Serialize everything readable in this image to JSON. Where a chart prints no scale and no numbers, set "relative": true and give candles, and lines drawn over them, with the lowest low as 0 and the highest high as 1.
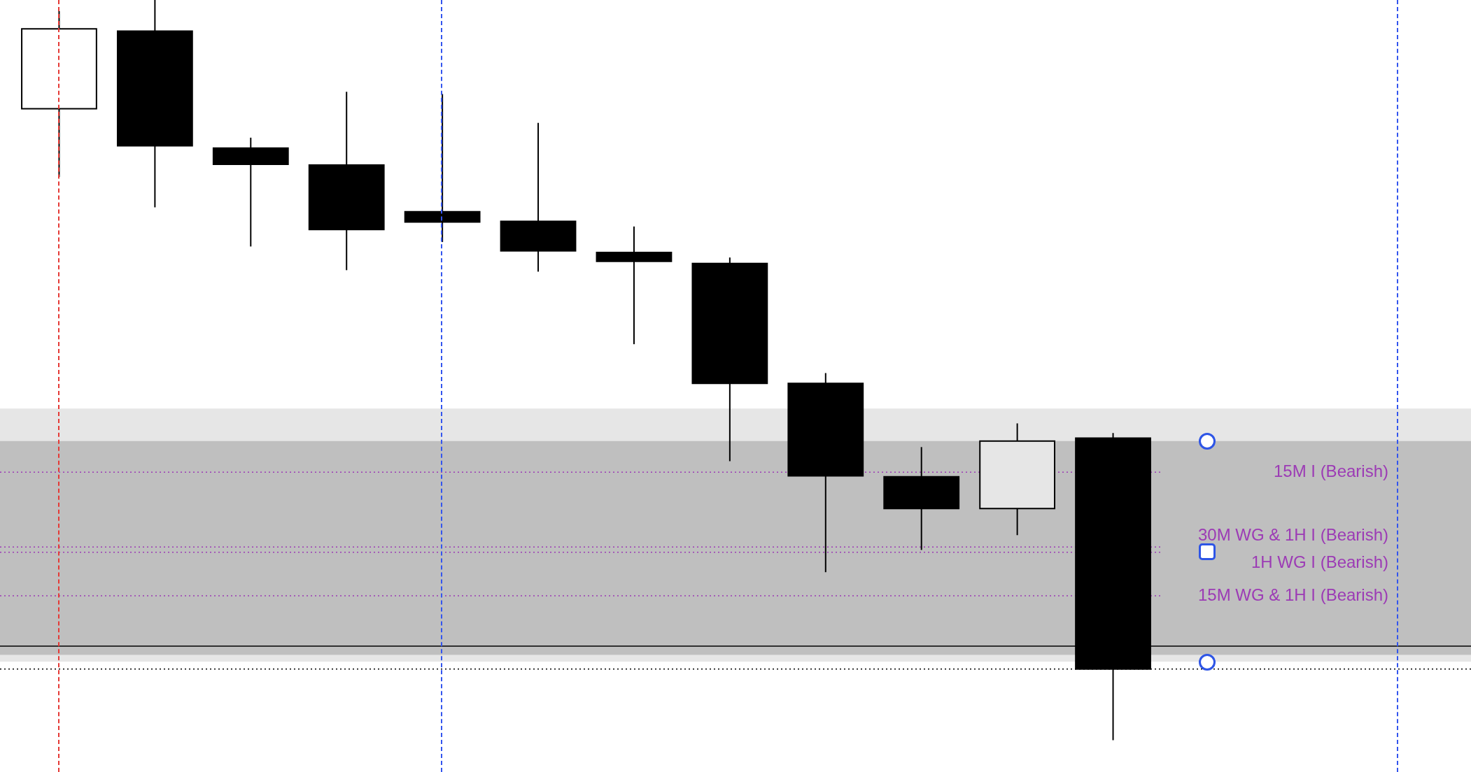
{
  "chart_data": {
    "type": "candlestick",
    "relative": true,
    "categories": [
      null,
      null,
      null,
      null,
      null,
      null,
      null,
      null,
      null,
      null,
      null,
      null
    ],
    "ohlc": [
      [
        0.853,
        0.985,
        0.761,
        0.961
      ],
      [
        0.958,
        1,
        0.72,
        0.803
      ],
      [
        0.8,
        0.814,
        0.667,
        0.778
      ],
      [
        0.777,
        0.876,
        0.635,
        0.69
      ],
      [
        0.714,
        0.873,
        0.673,
        0.7
      ],
      [
        0.701,
        0.834,
        0.633,
        0.661
      ],
      [
        0.659,
        0.694,
        0.535,
        0.647
      ],
      [
        0.644,
        0.652,
        0.377,
        0.482
      ],
      [
        0.482,
        0.496,
        0.227,
        0.357
      ],
      [
        0.356,
        0.396,
        0.257,
        0.313
      ],
      [
        0.313,
        0.428,
        0.277,
        0.404
      ],
      [
        0.408,
        0.415,
        0,
        0.096
      ]
    ],
    "colors": [
      "#ffffff",
      "#000000",
      "#000000",
      "#000000",
      "#000000",
      "#000000",
      "#000000",
      "#000000",
      "#000000",
      "#000000",
      "#e6e6e6",
      "#000000"
    ],
    "bands": [
      {
        "axis": "y",
        "from": 0.277,
        "to": 0.448,
        "color": "#e6e6e6"
      },
      {
        "axis": "y",
        "from": 0.115,
        "to": 0.404,
        "color": "#bfbfbf"
      },
      {
        "axis": "y",
        "from": 0.106,
        "to": 0.115,
        "color": "#e6e6e6"
      }
    ],
    "ref_lines": [
      {
        "axis": "y",
        "value": 0.362,
        "label": "15M I (Bearish)",
        "color": "#9c3bb5",
        "line_style": "dotted"
      },
      {
        "axis": "y",
        "value": 0.261,
        "label": "30M WG & 1H I (Bearish)",
        "color": "#9c3bb5",
        "line_style": "dotted"
      },
      {
        "axis": "y",
        "value": 0.254,
        "label": "1H WG I (Bearish)",
        "color": "#9c3bb5",
        "line_style": "dotted"
      },
      {
        "axis": "y",
        "value": 0.195,
        "label": "15M WG & 1H I (Bearish)",
        "color": "#9c3bb5",
        "line_style": "dotted"
      },
      {
        "axis": "y",
        "value": 0.127,
        "color": "#000000",
        "line_style": "solid"
      },
      {
        "axis": "y",
        "value": 0.096,
        "color": "#000000",
        "line_style": "dotted"
      }
    ]
  }
}
